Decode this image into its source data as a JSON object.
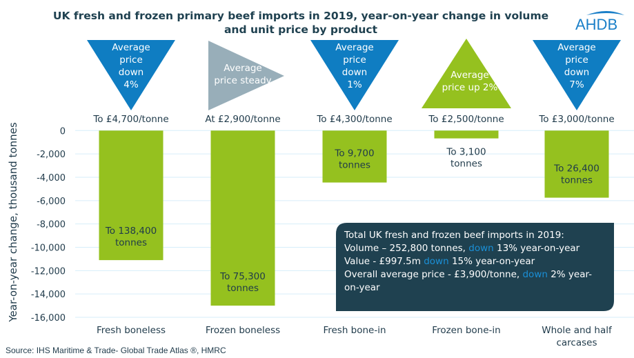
{
  "chart_data": {
    "type": "bar",
    "title": "UK fresh and frozen primary beef imports in 2019, year-on-year change in volume and unit price by product",
    "title_lines": [
      "UK fresh and frozen primary beef imports in 2019, year-on-year change in volume",
      "and unit price by product"
    ],
    "ylabel": "Year-on-year change, thousand tonnes",
    "xlabel": "",
    "ylim": [
      -16000,
      0
    ],
    "yticks": [
      "0",
      "-2,000",
      "-4,000",
      "-6,000",
      "-8,000",
      "-10,000",
      "-12,000",
      "-14,000",
      "-16,000"
    ],
    "ytick_values": [
      0,
      -2000,
      -4000,
      -6000,
      -8000,
      -10000,
      -12000,
      -14000,
      -16000
    ],
    "grid": true,
    "categories": [
      "Fresh boneless",
      "Frozen boneless",
      "Fresh bone-in",
      "Frozen bone-in",
      "Whole and half carcases"
    ],
    "category_lines": [
      [
        "Fresh boneless"
      ],
      [
        "Frozen boneless"
      ],
      [
        "Fresh bone-in"
      ],
      [
        "Frozen bone-in"
      ],
      [
        "Whole and half",
        "carcases"
      ]
    ],
    "values": [
      -11100,
      -15000,
      -4450,
      -670,
      -5750
    ],
    "bar_labels": [
      [
        "To 138,400",
        "tonnes"
      ],
      [
        "To 75,300",
        "tonnes"
      ],
      [
        "To 9,700",
        "tonnes"
      ],
      [
        "To 3,100",
        "tonnes"
      ],
      [
        "To 26,400",
        "tonnes"
      ]
    ],
    "price_labels": [
      "To £4,700/tonne",
      "At £2,900/tonne",
      "To £4,300/tonne",
      "To £2,500/tonne",
      "To £3,000/tonne"
    ],
    "price_indicators": [
      {
        "direction": "down",
        "lines": [
          "Average",
          "price",
          "down",
          "4%"
        ]
      },
      {
        "direction": "steady",
        "lines": [
          "Average",
          "price steady"
        ]
      },
      {
        "direction": "down",
        "lines": [
          "Average",
          "price",
          "down",
          "1%"
        ]
      },
      {
        "direction": "up",
        "lines": [
          "Average",
          "price up 2%"
        ]
      },
      {
        "direction": "down",
        "lines": [
          "Average",
          "price",
          "down",
          "7%"
        ]
      }
    ],
    "summary_box": {
      "line1": "Total UK fresh and frozen beef imports in 2019:",
      "line2_a": "Volume – 252,800 tonnes, ",
      "line2_b": "down",
      "line2_c": " 13% year-on-year",
      "line3_a": "Value - £997.5m ",
      "line3_b": "down",
      "line3_c": " 15% year-on-year",
      "line4_a": "Overall average price - £3,900/tonne, ",
      "line4_b": "down",
      "line4_c": " 2% year-",
      "line5": "on-year"
    },
    "source": "Source: IHS Maritime & Trade- Global Trade Atlas ®, HMRC",
    "logo": "AHDB"
  },
  "colors": {
    "bar": "#95c11f",
    "down": "#0f7dc2",
    "steady": "#98aeb9",
    "up": "#95c11f",
    "box": "#1f4150",
    "title": "#1f4150",
    "grid": "#d6eefa"
  }
}
